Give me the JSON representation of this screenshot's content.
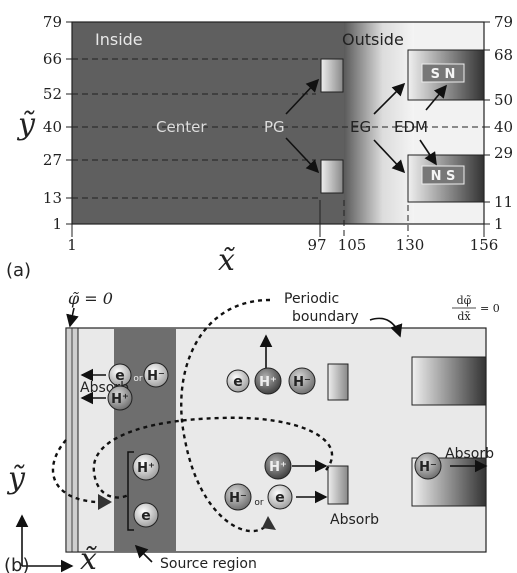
{
  "panel_a": {
    "tag": "(a)",
    "region_inside": "Inside",
    "region_outside": "Outside",
    "label_center": "Center",
    "label_pg": "PG",
    "label_eg": "EG",
    "label_edm": "EDM",
    "magnet_top": "S N",
    "magnet_bottom": "N S",
    "y_axis_symbol": "ỹ",
    "x_axis_symbol": "x̃",
    "y_ticks_left": [
      "79",
      "66",
      "52",
      "40",
      "27",
      "13",
      "1"
    ],
    "y_ticks_right": [
      "79",
      "68",
      "50",
      "40",
      "29",
      "11",
      "1"
    ],
    "x_ticks": [
      "1",
      "97",
      "105",
      "130",
      "156"
    ]
  },
  "panel_b": {
    "tag": "(b)",
    "phi_zero": "φ̃ = 0",
    "dphi_num": "dφ̃",
    "dphi_den": "dx̃",
    "dphi_eq": "= 0",
    "periodic_1": "Periodic",
    "periodic_2": "boundary",
    "absorb_left": "Absorb",
    "absorb_mid": "Absorb",
    "absorb_right": "Absorb",
    "source_region": "Source region",
    "particle_e": "e",
    "particle_hp": "H⁺",
    "particle_hm": "H⁻",
    "or": "or",
    "y_axis_symbol": "ỹ",
    "x_axis_symbol": "x̃"
  }
}
